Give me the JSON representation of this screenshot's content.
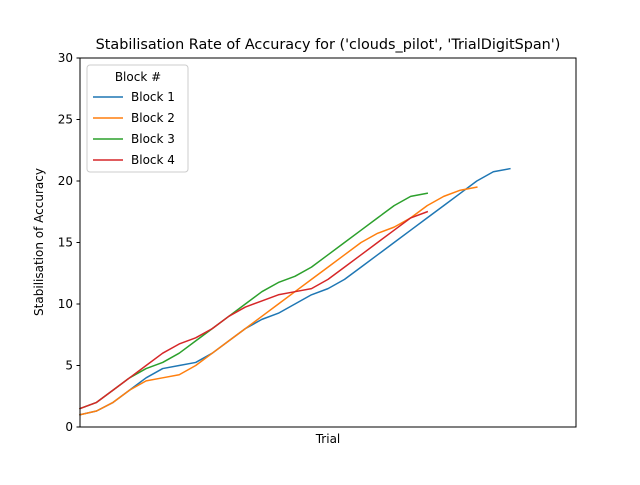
{
  "chart_data": {
    "type": "line",
    "title": "Stabilisation Rate of Accuracy for ('clouds_pilot', 'TrialDigitSpan')",
    "xlabel": "Trial",
    "ylabel": "Stabilisation of Accuracy",
    "ylim": [
      0,
      30
    ],
    "xlim": [
      1,
      31
    ],
    "x_ticks_shown": false,
    "y_ticks": [
      0,
      5,
      10,
      15,
      20,
      25,
      30
    ],
    "grid": false,
    "legend": {
      "title": "Block #",
      "placement": "top-left"
    },
    "series": [
      {
        "name": "Block 1",
        "color": "#1f77b4",
        "values": [
          1.0,
          1.3,
          2.0,
          3.0,
          4.0,
          4.75,
          5.0,
          5.25,
          6.0,
          7.0,
          8.0,
          8.75,
          9.25,
          10.0,
          10.75,
          11.25,
          12.0,
          13.0,
          14.0,
          15.0,
          16.0,
          17.0,
          18.0,
          19.0,
          20.0,
          20.75,
          21.0
        ]
      },
      {
        "name": "Block 2",
        "color": "#ff7f0e",
        "values": [
          1.0,
          1.3,
          2.0,
          3.0,
          3.75,
          4.0,
          4.25,
          5.0,
          6.0,
          7.0,
          8.0,
          9.0,
          10.0,
          11.0,
          12.0,
          13.0,
          14.0,
          15.0,
          15.75,
          16.25,
          17.0,
          18.0,
          18.75,
          19.25,
          19.5
        ]
      },
      {
        "name": "Block 3",
        "color": "#2ca02c",
        "values": [
          1.5,
          2.0,
          3.0,
          4.0,
          4.75,
          5.25,
          6.0,
          7.0,
          8.0,
          9.0,
          10.0,
          11.0,
          11.75,
          12.25,
          13.0,
          14.0,
          15.0,
          16.0,
          17.0,
          18.0,
          18.75,
          19.0
        ]
      },
      {
        "name": "Block 4",
        "color": "#d62728",
        "values": [
          1.5,
          2.0,
          3.0,
          4.0,
          5.0,
          6.0,
          6.75,
          7.25,
          8.0,
          9.0,
          9.75,
          10.25,
          10.75,
          11.0,
          11.25,
          12.0,
          13.0,
          14.0,
          15.0,
          16.0,
          17.0,
          17.5
        ]
      }
    ]
  }
}
